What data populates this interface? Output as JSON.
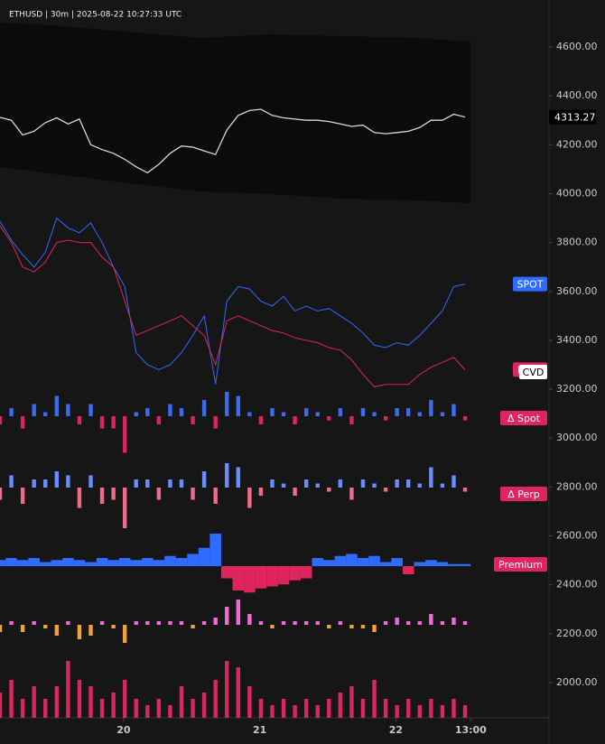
{
  "header": {
    "title": "ETHUSD | 30m | 2025-08-22 10:27:33 UTC"
  },
  "chart_data": [
    {
      "type": "line",
      "ylim": [
        1856,
        4792
      ],
      "yticks": [
        {
          "value": 2000,
          "label": "2000.00"
        },
        {
          "value": 2200,
          "label": "2200.00"
        },
        {
          "value": 2400,
          "label": "2400.00"
        },
        {
          "value": 2600,
          "label": "2600.00"
        },
        {
          "value": 2800,
          "label": "2800.00"
        },
        {
          "value": 3000,
          "label": "3000.00"
        },
        {
          "value": 3200,
          "label": "3200.00"
        },
        {
          "value": 3400,
          "label": "3400.00"
        },
        {
          "value": 3600,
          "label": "3600.00"
        },
        {
          "value": 3800,
          "label": "3800.00"
        },
        {
          "value": 4000,
          "label": "4000.00"
        },
        {
          "value": 4200,
          "label": "4200.00"
        },
        {
          "value": 4400,
          "label": "4400.00"
        },
        {
          "value": 4600,
          "label": "4600.00"
        }
      ],
      "xlim": [
        0,
        48.4
      ],
      "xticks": [
        {
          "value": 10.9,
          "label": "20"
        },
        {
          "value": 22.9,
          "label": "21"
        },
        {
          "value": 34.9,
          "label": "22"
        },
        {
          "value": 41.5,
          "label": "13:00"
        }
      ],
      "last_price": 4313.27,
      "annotations": [
        "CVD"
      ],
      "series": [
        {
          "color": "#d8d8d8",
          "values": [
            4312,
            4300,
            4240,
            4255,
            4290,
            4310,
            4285,
            4305,
            4200,
            4180,
            4165,
            4140,
            4110,
            4085,
            4120,
            4165,
            4195,
            4190,
            4175,
            4160,
            4260,
            4320,
            4340,
            4345,
            4320,
            4310,
            4305,
            4300,
            4300,
            4295,
            4285,
            4275,
            4280,
            4250,
            4245,
            4250,
            4255,
            4270,
            4300,
            4300,
            4325,
            4313.27
          ]
        },
        {
          "name": "SPOT",
          "color": "#2f6bff",
          "values": [
            3887,
            3810,
            3750,
            3700,
            3760,
            3900,
            3860,
            3840,
            3880,
            3800,
            3700,
            3620,
            3350,
            3300,
            3280,
            3300,
            3350,
            3420,
            3500,
            3220,
            3560,
            3620,
            3610,
            3560,
            3540,
            3580,
            3520,
            3540,
            3520,
            3530,
            3500,
            3470,
            3430,
            3380,
            3370,
            3390,
            3380,
            3420,
            3470,
            3520,
            3620,
            3630
          ]
        },
        {
          "name": "PERP",
          "color": "#e0245e",
          "values": [
            3868,
            3800,
            3700,
            3680,
            3720,
            3800,
            3810,
            3800,
            3800,
            3740,
            3700,
            3560,
            3420,
            3440,
            3460,
            3480,
            3500,
            3460,
            3420,
            3300,
            3480,
            3500,
            3480,
            3460,
            3440,
            3430,
            3410,
            3400,
            3390,
            3370,
            3360,
            3320,
            3260,
            3210,
            3220,
            3220,
            3220,
            3260,
            3290,
            3310,
            3330,
            3280
          ]
        }
      ]
    },
    {
      "type": "bar",
      "title": "Δ Spot",
      "colors": [
        "#3b6cf0",
        "#e0245e"
      ],
      "ylim": [
        -1,
        1
      ],
      "values": [
        -0.2,
        0.2,
        -0.3,
        0.3,
        0.1,
        0.5,
        0.3,
        -0.2,
        0.3,
        -0.3,
        -0.3,
        -0.9,
        0.1,
        0.2,
        -0.2,
        0.3,
        0.2,
        -0.2,
        0.4,
        -0.3,
        0.6,
        0.5,
        0.1,
        -0.2,
        0.2,
        0.1,
        -0.2,
        0.2,
        0.1,
        -0.1,
        0.2,
        -0.2,
        0.2,
        0.1,
        -0.1,
        0.2,
        0.2,
        0.1,
        0.4,
        0.1,
        0.3,
        -0.1
      ]
    },
    {
      "type": "bar",
      "title": "Δ Perp",
      "colors": [
        "#6a8cff",
        "#f06a8a"
      ],
      "ylim": [
        -1,
        1
      ],
      "values": [
        -0.3,
        0.3,
        -0.4,
        0.2,
        0.2,
        0.4,
        0.3,
        -0.5,
        0.3,
        -0.4,
        -0.3,
        -1,
        0.2,
        0.2,
        -0.3,
        0.2,
        0.2,
        -0.3,
        0.4,
        -0.4,
        0.6,
        0.5,
        -0.5,
        -0.2,
        0.2,
        0.1,
        -0.2,
        0.2,
        0.1,
        -0.1,
        0.2,
        -0.3,
        0.2,
        0.1,
        -0.1,
        0.2,
        0.2,
        0.1,
        0.5,
        0.1,
        0.3,
        -0.1
      ]
    },
    {
      "type": "area",
      "title": "Premium",
      "colors": [
        "#2f6bff",
        "#e0245e"
      ],
      "ylim": [
        -1,
        1
      ],
      "values": [
        0.15,
        0.2,
        0.15,
        0.2,
        0.1,
        0.15,
        0.2,
        0.15,
        0.1,
        0.2,
        0.15,
        0.2,
        0.15,
        0.2,
        0.15,
        0.25,
        0.2,
        0.3,
        0.45,
        0.8,
        -0.3,
        -0.6,
        -0.65,
        -0.55,
        -0.5,
        -0.45,
        -0.35,
        -0.3,
        0.2,
        0.15,
        0.25,
        0.3,
        0.2,
        0.25,
        0.1,
        0.2,
        -0.2,
        0.1,
        0.15,
        0.1,
        0.05,
        0.05
      ]
    },
    {
      "type": "bar",
      "colors": [
        "#f06ad8",
        "#f0a040"
      ],
      "ylim": [
        -1,
        1
      ],
      "values": [
        -0.2,
        0.1,
        -0.2,
        0.1,
        -0.1,
        -0.3,
        0.1,
        -0.4,
        -0.3,
        0.1,
        -0.1,
        -0.5,
        0.1,
        0.1,
        0.1,
        0.1,
        0.1,
        -0.1,
        0.1,
        0.2,
        0.5,
        0.7,
        0.3,
        0.1,
        -0.1,
        0.1,
        0.1,
        0.1,
        0.1,
        -0.1,
        0.1,
        -0.1,
        -0.1,
        -0.2,
        0.1,
        0.2,
        0.1,
        0.1,
        0.3,
        0.1,
        0.2,
        0.1
      ]
    },
    {
      "type": "bar",
      "colors": [
        "#d8285e",
        "#d8285e"
      ],
      "ylim": [
        0,
        1
      ],
      "values": [
        0.4,
        0.6,
        0.3,
        0.5,
        0.3,
        0.5,
        0.9,
        0.6,
        0.5,
        0.3,
        0.4,
        0.6,
        0.3,
        0.2,
        0.3,
        0.2,
        0.5,
        0.3,
        0.4,
        0.6,
        0.9,
        0.8,
        0.5,
        0.3,
        0.2,
        0.3,
        0.2,
        0.3,
        0.2,
        0.3,
        0.4,
        0.5,
        0.3,
        0.6,
        0.3,
        0.2,
        0.3,
        0.2,
        0.3,
        0.2,
        0.3,
        0.2
      ]
    }
  ]
}
